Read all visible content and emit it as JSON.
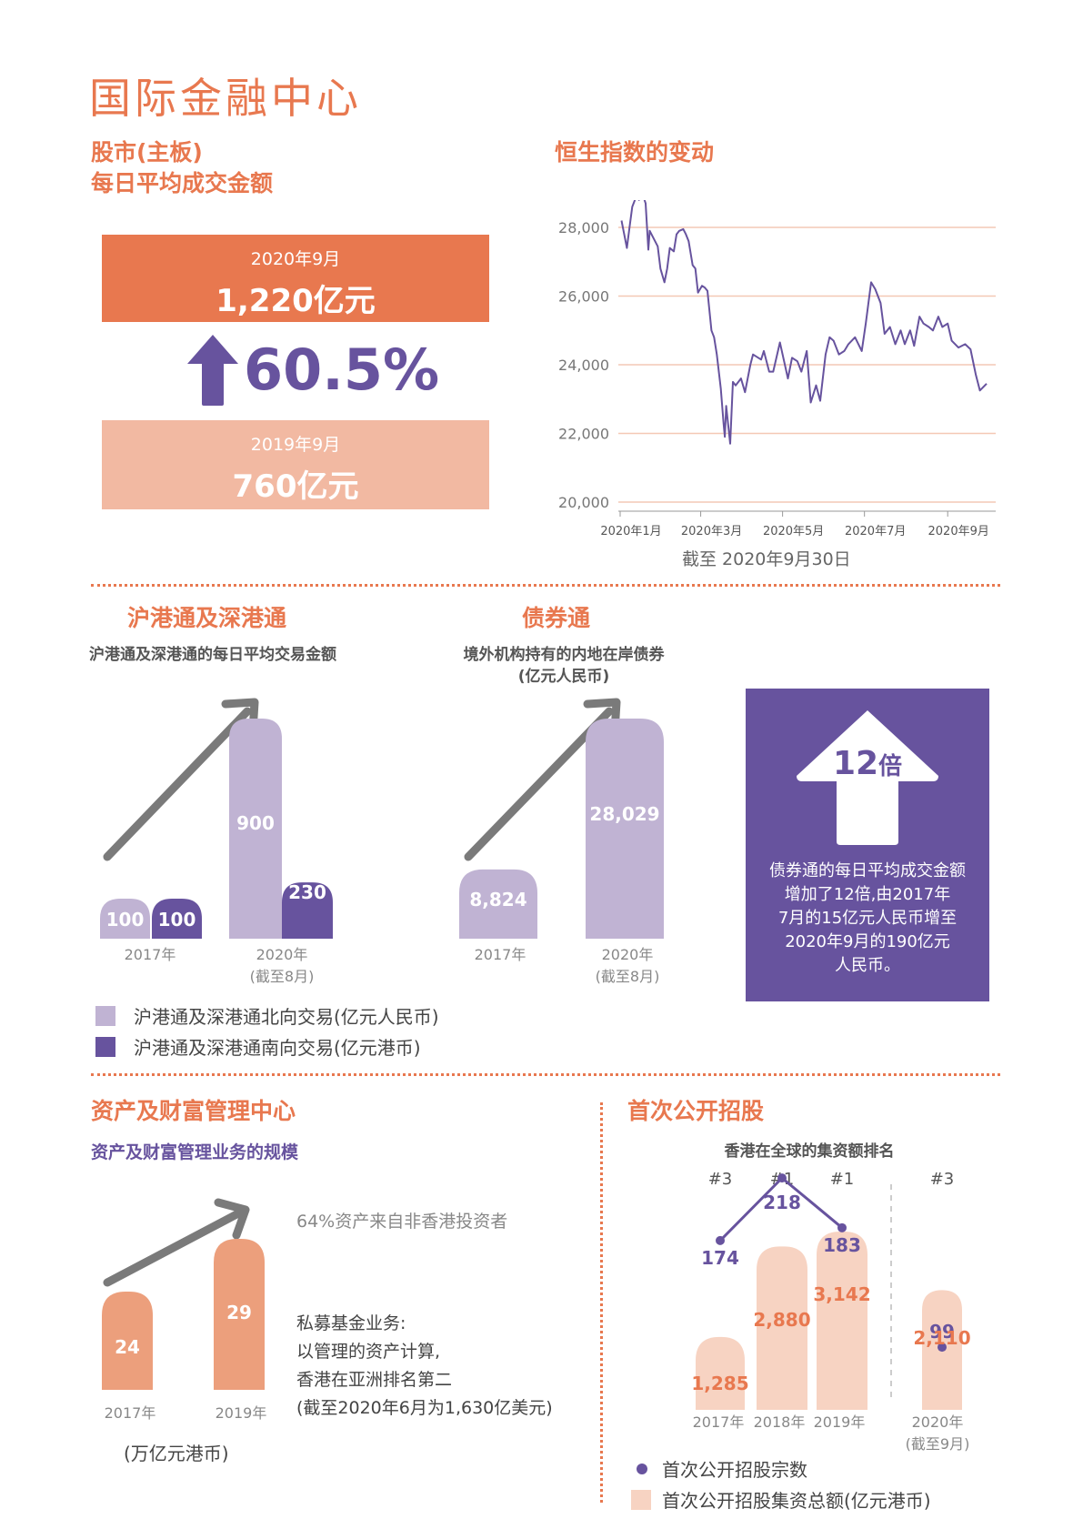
{
  "page": {
    "title": "国际金融中心"
  },
  "stock": {
    "title_line1": "股市(主板)",
    "title_line2": "每日平均成交金额",
    "current": {
      "date": "2020年9月",
      "value": "1,220亿元"
    },
    "change": "60.5%",
    "previous": {
      "date": "2019年9月",
      "value": "760亿元"
    }
  },
  "hsi": {
    "title": "恒生指数的变动",
    "note": "截至 2020年9月30日"
  },
  "connect": {
    "title": "沪港通及深港通",
    "subtitle": "沪港通及深港通的每日平均交易金额",
    "years": [
      "2017年",
      "2020年"
    ],
    "year_note": "(截至8月)",
    "legend_north": "沪港通及深港通北向交易(亿元人民币)",
    "legend_south": "沪港通及深港通南向交易(亿元港币)"
  },
  "bond": {
    "title": "债券通",
    "subtitle_line1": "境外机构持有的内地在岸债券",
    "subtitle_line2": "(亿元人民币)",
    "years": [
      "2017年",
      "2020年"
    ],
    "year_note": "(截至8月)",
    "multiple_num": "12",
    "multiple_unit": "倍",
    "desc_lines": [
      "债券通的每日平均成交金额",
      "增加了12倍,由2017年",
      "7月的15亿元人民币增至",
      "2020年9月的190亿元",
      "人民币。"
    ]
  },
  "wealth": {
    "title": "资产及财富管理中心",
    "subtitle": "资产及财富管理业务的规模",
    "note_top": "64%资产来自非香港投资者",
    "years": [
      "2017年",
      "2019年"
    ],
    "unit": "(万亿元港币)",
    "pe_lines": [
      "私募基金业务:",
      "以管理的资产计算,",
      "香港在亚洲排名第二",
      "(截至2020年6月为1,630亿美元)"
    ]
  },
  "ipo": {
    "title": "首次公开招股",
    "subtitle": "香港在全球的集资额排名",
    "years": [
      "2017年",
      "2018年",
      "2019年",
      "2020年"
    ],
    "year_note": "(截至9月)",
    "legend_count": "首次公开招股宗数",
    "legend_funds": "首次公开招股集资总额(亿元港币)"
  },
  "colors": {
    "orange": "#e8784f",
    "light_orange": "#f2b9a2",
    "purple": "#67539e",
    "light_purple": "#c0b3d3",
    "peach": "#f7d3c2",
    "wealth_bar": "#ec9f7c",
    "gray_arrow": "#7a7a7a"
  },
  "chart_data": [
    {
      "type": "line",
      "title": "恒生指数的变动",
      "ylim": [
        20000,
        28000
      ],
      "yticks": [
        "20,000",
        "22,000",
        "24,000",
        "26,000",
        "28,000"
      ],
      "xticks": [
        "2020年1月",
        "2020年3月",
        "2020年5月",
        "2020年7月",
        "2020年9月"
      ],
      "grid": true,
      "series": [
        {
          "x": [
            "2020-01-02",
            "2020-01-06",
            "2020-01-08",
            "2020-01-10",
            "2020-01-13",
            "2020-01-15",
            "2020-01-17",
            "2020-01-20",
            "2020-01-22",
            "2020-01-23",
            "2020-01-29",
            "2020-01-31",
            "2020-02-03",
            "2020-02-05",
            "2020-02-07",
            "2020-02-10",
            "2020-02-12",
            "2020-02-14",
            "2020-02-17",
            "2020-02-19",
            "2020-02-21",
            "2020-02-24",
            "2020-02-26",
            "2020-02-28",
            "2020-03-02",
            "2020-03-04",
            "2020-03-06",
            "2020-03-09",
            "2020-03-11",
            "2020-03-13",
            "2020-03-16",
            "2020-03-18",
            "2020-03-19",
            "2020-03-20",
            "2020-03-23",
            "2020-03-25",
            "2020-03-27",
            "2020-03-31",
            "2020-04-03",
            "2020-04-07",
            "2020-04-09",
            "2020-04-15",
            "2020-04-17",
            "2020-04-21",
            "2020-04-24",
            "2020-04-29",
            "2020-05-05",
            "2020-05-08",
            "2020-05-12",
            "2020-05-15",
            "2020-05-19",
            "2020-05-22",
            "2020-05-26",
            "2020-05-29",
            "2020-06-02",
            "2020-06-05",
            "2020-06-08",
            "2020-06-12",
            "2020-06-16",
            "2020-06-19",
            "2020-06-24",
            "2020-06-29",
            "2020-07-02",
            "2020-07-06",
            "2020-07-09",
            "2020-07-13",
            "2020-07-16",
            "2020-07-20",
            "2020-07-24",
            "2020-07-28",
            "2020-07-31",
            "2020-08-04",
            "2020-08-07",
            "2020-08-11",
            "2020-08-14",
            "2020-08-18",
            "2020-08-21",
            "2020-08-25",
            "2020-08-28",
            "2020-09-01",
            "2020-09-04",
            "2020-09-09",
            "2020-09-14",
            "2020-09-18",
            "2020-09-22",
            "2020-09-25",
            "2020-09-30"
          ],
          "y": [
            28200,
            27400,
            28000,
            28600,
            28900,
            28800,
            29050,
            28700,
            27350,
            27900,
            27450,
            26800,
            26400,
            26800,
            27400,
            27300,
            27800,
            27900,
            27950,
            27800,
            27600,
            26900,
            26800,
            26100,
            26300,
            26250,
            26150,
            25000,
            24800,
            24300,
            23300,
            22300,
            21900,
            22800,
            21700,
            23500,
            23400,
            23600,
            23200,
            24000,
            24300,
            24150,
            24400,
            23800,
            23800,
            24650,
            23600,
            24200,
            24100,
            23800,
            24400,
            22900,
            23400,
            22950,
            24300,
            24800,
            24700,
            24300,
            24400,
            24600,
            24800,
            24400,
            25200,
            26400,
            26200,
            25800,
            24900,
            25100,
            24600,
            25000,
            24600,
            25000,
            24550,
            25400,
            25200,
            25100,
            25000,
            25400,
            25100,
            25200,
            24700,
            24500,
            24600,
            24450,
            23700,
            23250,
            23450
          ]
        }
      ]
    },
    {
      "type": "bar",
      "title": "沪港通及深港通的每日平均交易金额",
      "categories": [
        "2017年",
        "2020年"
      ],
      "series": [
        {
          "name": "沪港通及深港通北向交易(亿元人民币)",
          "values": [
            100,
            900
          ]
        },
        {
          "name": "沪港通及深港通南向交易(亿元港币)",
          "values": [
            100,
            230
          ]
        }
      ]
    },
    {
      "type": "bar",
      "title": "境外机构持有的内地在岸债券",
      "categories": [
        "2017年",
        "2020年"
      ],
      "values": [
        8824,
        28029
      ],
      "labels": [
        "8,824",
        "28,029"
      ]
    },
    {
      "type": "bar",
      "title": "资产及财富管理业务的规模",
      "categories": [
        "2017年",
        "2019年"
      ],
      "values": [
        24,
        29
      ]
    },
    {
      "type": "bar",
      "title": "香港在全球的集资额排名",
      "categories": [
        "2017年",
        "2018年",
        "2019年",
        "2020年"
      ],
      "ranks": [
        "#3",
        "#1",
        "#1",
        "#3"
      ],
      "series": [
        {
          "name": "首次公开招股集资总额(亿元港币)",
          "values": [
            1285,
            2880,
            3142,
            2110
          ],
          "labels": [
            "1,285",
            "2,880",
            "3,142",
            "2,110"
          ]
        },
        {
          "name": "首次公开招股宗数",
          "values": [
            174,
            218,
            183,
            99
          ]
        }
      ]
    }
  ]
}
